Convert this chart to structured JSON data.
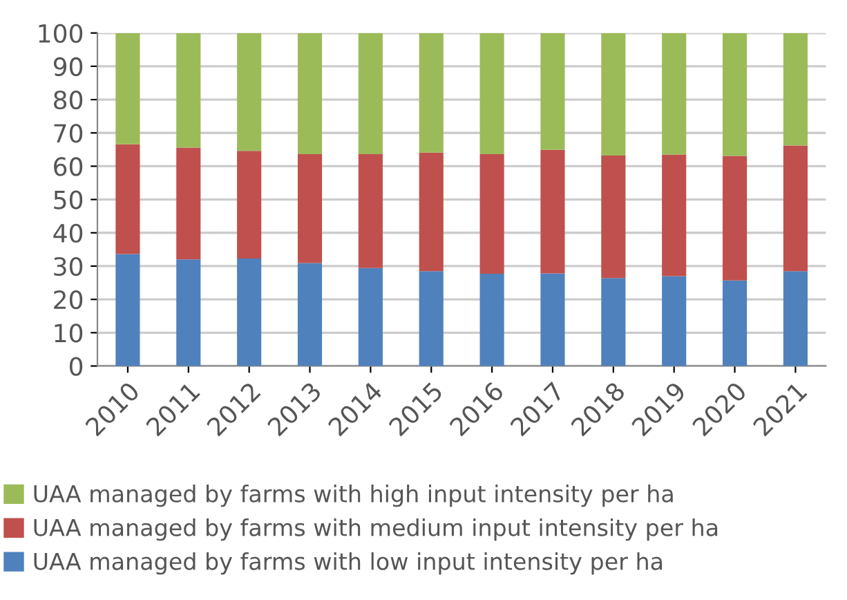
{
  "chart_data": {
    "type": "bar",
    "stacked": true,
    "categories": [
      "2010",
      "2011",
      "2012",
      "2013",
      "2014",
      "2015",
      "2016",
      "2017",
      "2018",
      "2019",
      "2020",
      "2021"
    ],
    "series": [
      {
        "name": "UAA managed by farms with low input intensity per ha",
        "color": "#4f81bd",
        "values": [
          33.6,
          32.0,
          32.3,
          30.9,
          29.4,
          28.5,
          27.7,
          27.8,
          26.4,
          27.0,
          25.7,
          28.5
        ]
      },
      {
        "name": "UAA managed by farms with medium input intensity per ha",
        "color": "#c0504d",
        "values": [
          33.0,
          33.6,
          32.3,
          32.7,
          34.2,
          35.6,
          35.9,
          37.1,
          36.8,
          36.5,
          37.4,
          37.7
        ]
      },
      {
        "name": "UAA managed by farms with high input intensity per ha",
        "color": "#9bbb59",
        "values": [
          33.4,
          34.4,
          35.4,
          36.4,
          36.4,
          35.9,
          36.4,
          35.1,
          36.8,
          36.5,
          36.9,
          33.8
        ]
      }
    ],
    "ylim": [
      0,
      100
    ],
    "yticks": [
      0,
      10,
      20,
      30,
      40,
      50,
      60,
      70,
      80,
      90,
      100
    ],
    "grid": "y",
    "legend": "bottom"
  }
}
